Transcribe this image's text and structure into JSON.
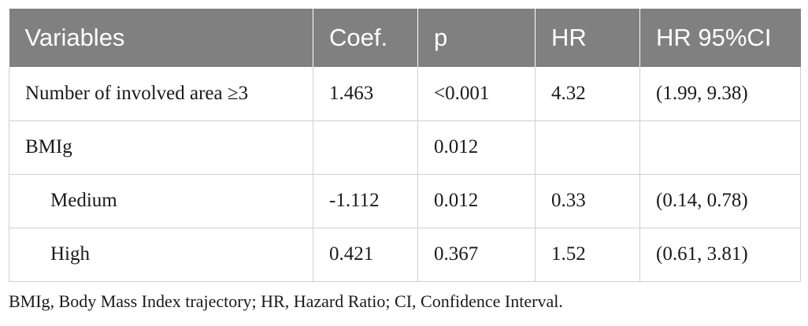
{
  "table": {
    "headers": [
      "Variables",
      "Coef.",
      "p",
      "HR",
      "HR 95%CI"
    ],
    "rows": [
      {
        "variable": "Number of involved area ≥3",
        "coef": "1.463",
        "p": "<0.001",
        "hr": "4.32",
        "ci": "(1.99, 9.38)",
        "indent": false
      },
      {
        "variable": "BMIg",
        "coef": "",
        "p": "0.012",
        "hr": "",
        "ci": "",
        "indent": false
      },
      {
        "variable": "Medium",
        "coef": "-1.112",
        "p": "0.012",
        "hr": "0.33",
        "ci": "(0.14, 0.78)",
        "indent": true
      },
      {
        "variable": "High",
        "coef": "0.421",
        "p": "0.367",
        "hr": "1.52",
        "ci": "(0.61, 3.81)",
        "indent": true
      }
    ],
    "header_bg_color": "#808080",
    "header_text_color": "#ffffff",
    "border_color": "#cfcfcf"
  },
  "footnote": "BMIg, Body Mass Index trajectory; HR, Hazard Ratio; CI, Confidence Interval."
}
